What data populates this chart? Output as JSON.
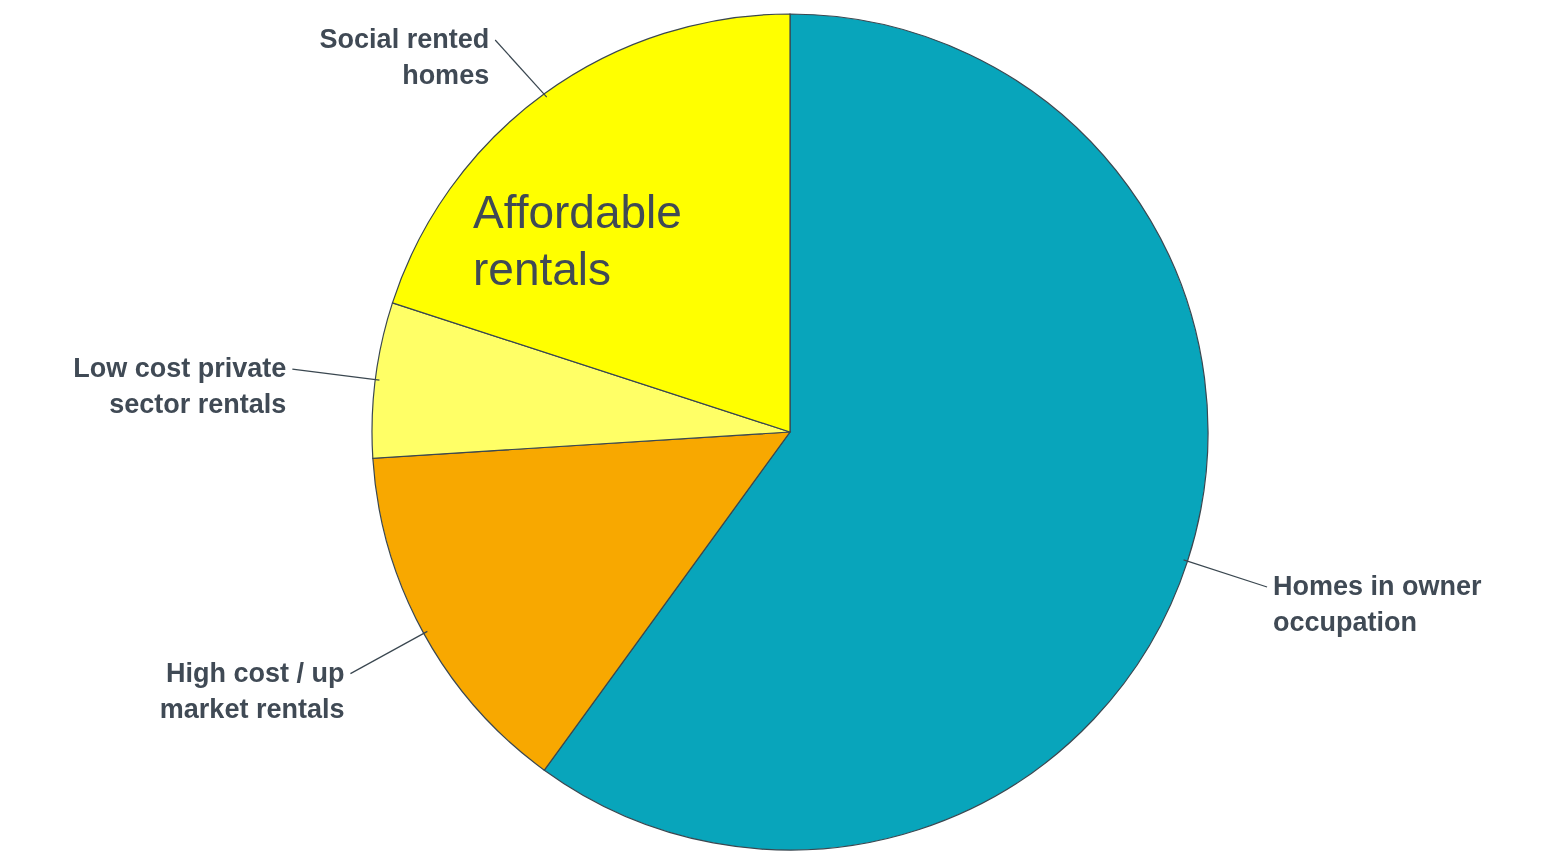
{
  "chart_data": {
    "type": "pie",
    "categories": [
      "Homes in owner occupation",
      "High cost / up market rentals",
      "Low cost private sector rentals",
      "Social rented homes"
    ],
    "values": [
      60,
      14,
      6,
      20
    ],
    "colors": [
      "#08a5bb",
      "#f8a800",
      "#ffff66",
      "#ffff00"
    ],
    "annotations": [
      "Affordable rentals"
    ]
  }
}
